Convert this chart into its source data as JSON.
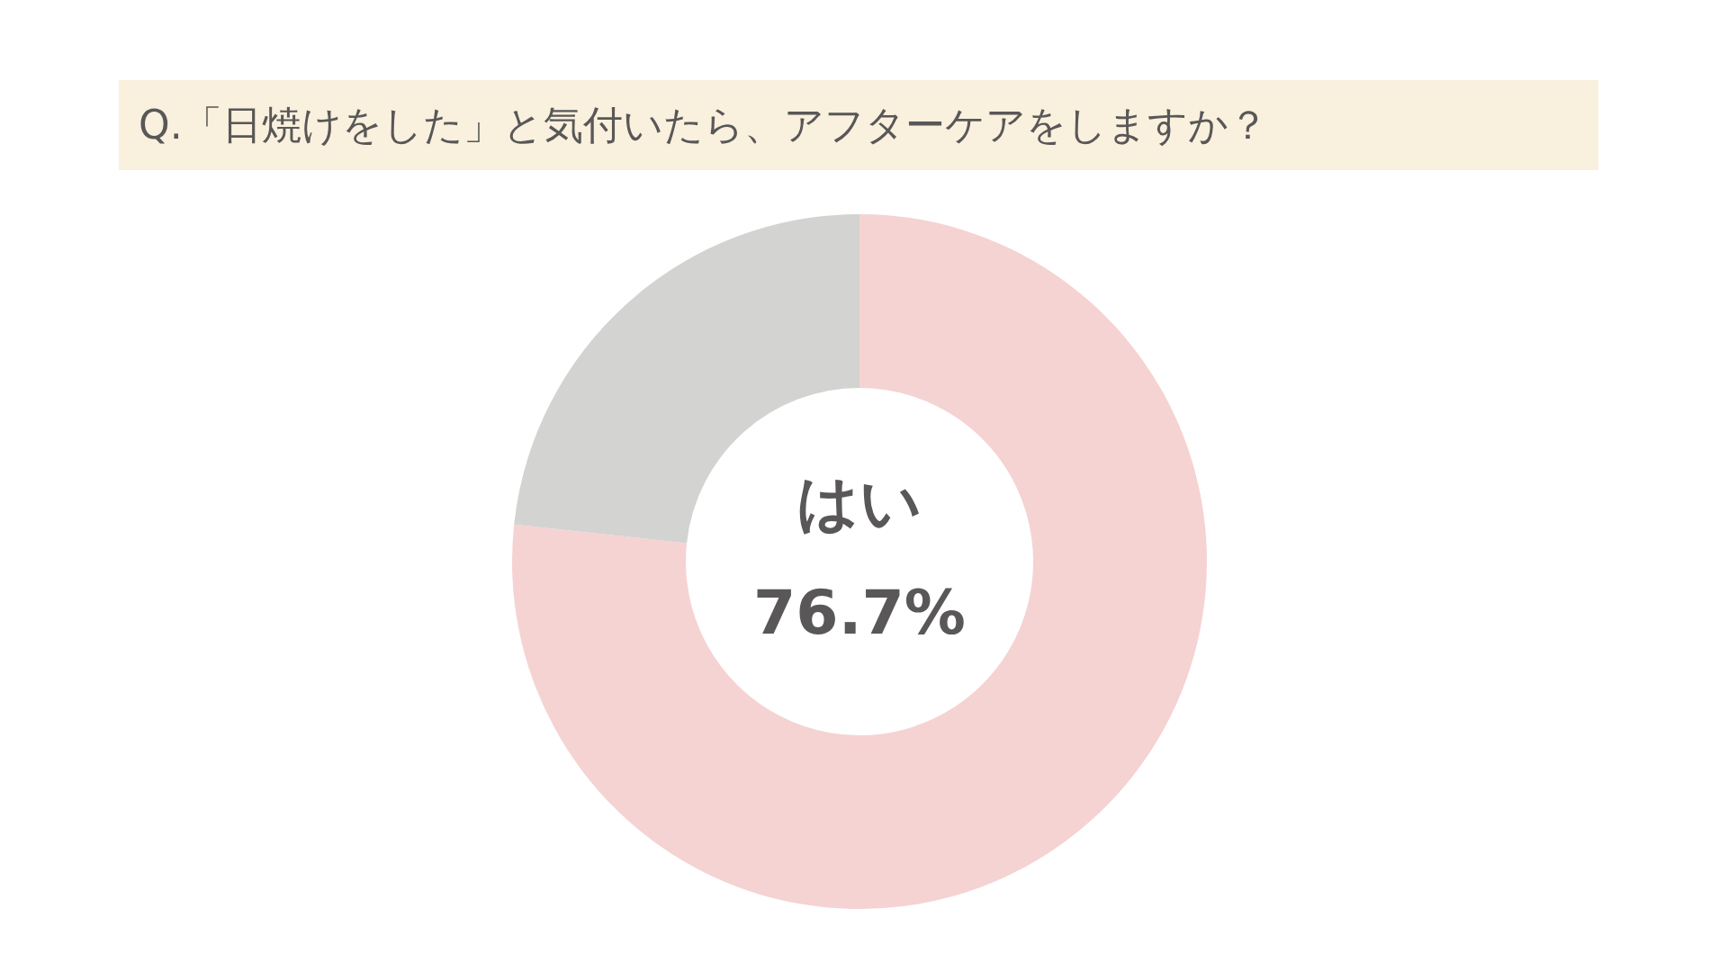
{
  "chart_data": {
    "type": "donut",
    "title": "Q.「日焼けをした」と気付いたら、アフターケアをしますか？",
    "categories": [
      "はい",
      null
    ],
    "values": [
      76.7,
      23.3
    ],
    "colors": [
      "#f5d3d2",
      "#d3d3d2"
    ],
    "value_labels": [
      "76.7%",
      null
    ],
    "legend": false
  }
}
